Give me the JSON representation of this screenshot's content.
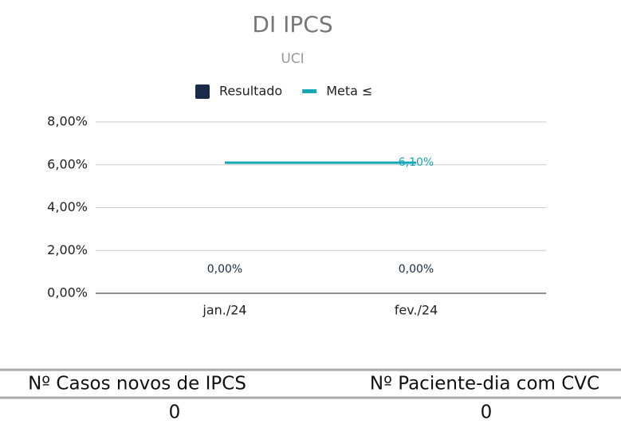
{
  "chart_data": {
    "type": "bar",
    "title": "DI IPCS",
    "subtitle": "UCI",
    "categories": [
      "jan./24",
      "fev./24"
    ],
    "series": [
      {
        "name": "Resultado",
        "type": "bar",
        "color": "#1a2b4a",
        "values": [
          0,
          0
        ],
        "value_labels": [
          "0,00%",
          "0,00%"
        ]
      },
      {
        "name": "Meta ≤",
        "type": "line",
        "color": "#17a8b5",
        "values": [
          6.1,
          6.1
        ],
        "value_labels": [
          null,
          "6,10%"
        ]
      }
    ],
    "ylim": [
      0,
      8
    ],
    "yticks": [
      {
        "value": 0,
        "label": "0,00%"
      },
      {
        "value": 2,
        "label": "2,00%"
      },
      {
        "value": 4,
        "label": "4,00%"
      },
      {
        "value": 6,
        "label": "6,00%"
      },
      {
        "value": 8,
        "label": "8,00%"
      }
    ],
    "grid": true,
    "legend": "top"
  },
  "table": {
    "header": [
      "Nº Casos novos de IPCS",
      "Nº Paciente-dia com CVC"
    ],
    "rows": [
      [
        "0",
        "0"
      ]
    ]
  }
}
